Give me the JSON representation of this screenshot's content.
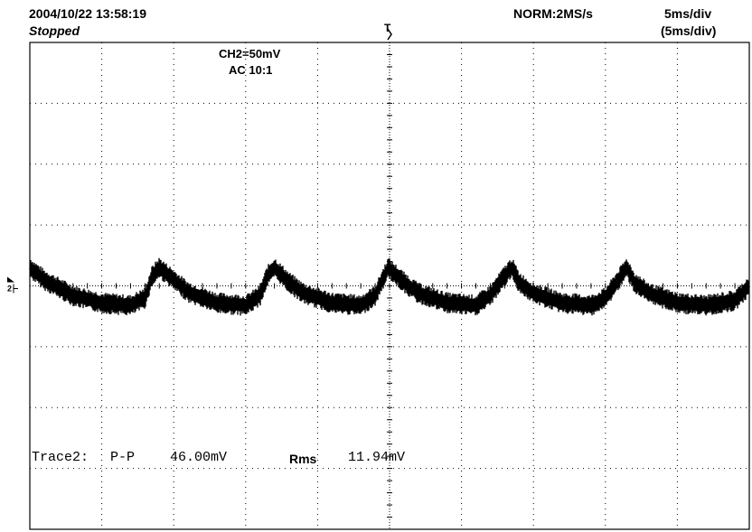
{
  "header": {
    "timestamp": "2004/10/22  13:58:19",
    "state": "Stopped",
    "mode": "NORM:2MS/s",
    "time_div": "5ms/div",
    "time_div_paren": "(5ms/div)",
    "trigger_marker": "T"
  },
  "channel": {
    "scale": "CH2=50mV",
    "coupling": "AC  10:1",
    "marker": "2"
  },
  "measurement": {
    "trace": "Trace2:",
    "pp_label": "P-P",
    "pp_value": "46.00mV",
    "rms_label": "Rms",
    "rms_value": "11.94mV"
  },
  "colors": {
    "trace": "#000000",
    "grid": "#000000",
    "background": "#ffffff"
  },
  "chart_data": {
    "type": "line",
    "title": "",
    "xlabel": "",
    "ylabel": "",
    "x_unit": "ms",
    "y_unit": "mV",
    "xlim": [
      -25,
      25
    ],
    "ylim": [
      -200,
      200
    ],
    "grid": true,
    "x_divisions": 10,
    "y_divisions": 8,
    "series": [
      {
        "x": [
          -25,
          -24,
          -22,
          -20,
          -18,
          -17,
          -16.5,
          -16,
          -15,
          -14,
          -12,
          -10,
          -9,
          -8.5,
          -8,
          -7,
          -6,
          -4,
          -2,
          -1,
          -0.1,
          1,
          2,
          4,
          6,
          7,
          8,
          8.5,
          9,
          10,
          12,
          14,
          15,
          16.5,
          17,
          18,
          20,
          22,
          24,
          25
        ],
        "y": [
          15,
          5,
          -8,
          -14,
          -16,
          -10,
          8,
          15,
          5,
          -5,
          -14,
          -16,
          -8,
          8,
          15,
          3,
          -6,
          -14,
          -16,
          -8,
          15,
          3,
          -6,
          -14,
          -16,
          -8,
          8,
          15,
          3,
          -6,
          -14,
          -16,
          -10,
          15,
          3,
          -6,
          -14,
          -16,
          -12,
          0
        ]
      }
    ],
    "noise_band_mV": 8
  }
}
